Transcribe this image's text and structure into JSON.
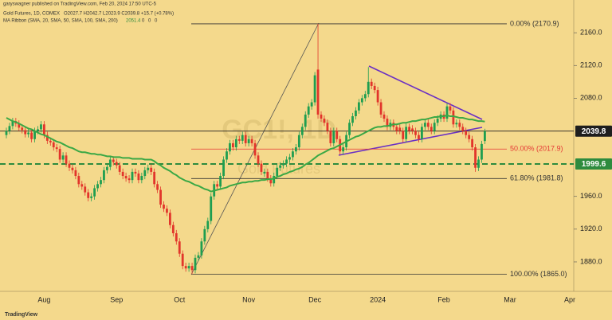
{
  "page": {
    "byline": "garyswagner published on TradingView.com, Feb 20, 2024 17:50 UTC-5",
    "footer": "TradingView"
  },
  "chart_data": {
    "type": "candlestick",
    "legend": {
      "symbol": "Gold Futures, 1D, COMEX",
      "ohlc": "O2027.7 H2042.7 L2023.9 C2039.8 +15.7 (+0.78%)",
      "ma": "MA Ribbon (SMA, 20, SMA, 50, SMA, 100, SMA, 200)",
      "ma_values": [
        2051.4,
        0,
        0,
        0
      ]
    },
    "watermark": {
      "symbol": "GC1!, 1D",
      "name": "Gold Futures"
    },
    "categories": [
      null,
      null,
      null,
      null,
      null,
      null,
      null,
      null,
      null,
      null,
      null,
      null,
      "Aug",
      null,
      null,
      null,
      null,
      null,
      null,
      null,
      null,
      null,
      null,
      null,
      null,
      null,
      null,
      null,
      null,
      null,
      null,
      null,
      null,
      null,
      null,
      "Sep",
      null,
      null,
      null,
      null,
      null,
      null,
      null,
      null,
      null,
      null,
      null,
      null,
      null,
      null,
      null,
      null,
      null,
      null,
      null,
      "Oct",
      null,
      null,
      null,
      null,
      null,
      null,
      null,
      null,
      null,
      null,
      null,
      null,
      null,
      null,
      null,
      null,
      null,
      null,
      null,
      null,
      null,
      "Nov",
      null,
      null,
      null,
      null,
      null,
      null,
      null,
      null,
      null,
      null,
      null,
      null,
      null,
      null,
      null,
      null,
      null,
      null,
      null,
      null,
      "Dec",
      null,
      null,
      null,
      null,
      null,
      null,
      null,
      null,
      null,
      null,
      null,
      null,
      null,
      null,
      null,
      null,
      null,
      null,
      null,
      "2024",
      null,
      null,
      null,
      null,
      null,
      null,
      null,
      null,
      null,
      null,
      null,
      null,
      null,
      null,
      null,
      null,
      null,
      null,
      null,
      null,
      "Feb",
      null,
      null,
      null,
      null,
      null,
      null,
      null,
      null,
      null,
      null,
      null,
      null,
      null,
      null,
      null,
      null,
      null,
      null,
      null,
      null,
      "Mar",
      null,
      null,
      null,
      null,
      null,
      null,
      null,
      null,
      null,
      null,
      null,
      null,
      null,
      null,
      null,
      null,
      null,
      null,
      "Apr",
      null
    ],
    "open": [
      2035,
      2040,
      2046,
      2052,
      2049,
      2044,
      2041,
      2036,
      2038,
      2030,
      2040,
      2042,
      2048,
      2035,
      2028,
      2026,
      2020,
      2018,
      2005,
      2010,
      2000,
      1995,
      1992,
      1985,
      1975,
      1972,
      1965,
      1958,
      1960,
      1970,
      1975,
      1980,
      1992,
      1996,
      2005,
      2002,
      1998,
      1990,
      1985,
      1982,
      1980,
      1990,
      1988,
      1980,
      1985,
      1992,
      1995,
      1990,
      1975,
      1968,
      1950,
      1945,
      1940,
      1925,
      1915,
      1905,
      1890,
      1875,
      1872,
      1875,
      1870,
      1885,
      1888,
      1905,
      1920,
      1930,
      1960,
      1975,
      1972,
      1985,
      2005,
      2015,
      2025,
      2020,
      2030,
      2028,
      2035,
      2025,
      2030,
      2025,
      2010,
      2000,
      1988,
      1990,
      1982,
      1976,
      1985,
      1995,
      1998,
      2000,
      2005,
      2008,
      2015,
      2020,
      2035,
      2045,
      2060,
      2070,
      2075,
      2115,
      2060,
      2055,
      2050,
      2040,
      2025,
      2040,
      2030,
      2015,
      2020,
      2035,
      2050,
      2058,
      2065,
      2075,
      2080,
      2085,
      2100,
      2095,
      2090,
      2075,
      2060,
      2055,
      2045,
      2050,
      2045,
      2044,
      2040,
      2030,
      2045,
      2043,
      2040,
      2035,
      2030,
      2045,
      2050,
      2045,
      2040,
      2050,
      2055,
      2060,
      2055,
      2070,
      2065,
      2048,
      2050,
      2045,
      2040,
      2035,
      2030,
      2020,
      1995,
      2005,
      2027.7,
      null,
      null,
      null,
      null,
      null,
      null,
      null,
      null,
      null,
      null,
      null,
      null,
      null,
      null,
      null,
      null,
      null,
      null,
      null,
      null,
      null,
      null,
      null,
      null,
      null,
      null,
      null,
      null
    ],
    "high": [
      2044,
      2050,
      2056,
      2056,
      2053,
      2048,
      2045,
      2042,
      2042,
      2044,
      2046,
      2052,
      2052,
      2039,
      2032,
      2030,
      2024,
      2022,
      2014,
      2014,
      2004,
      1999,
      1996,
      1989,
      1979,
      1976,
      1969,
      1964,
      1974,
      1979,
      1984,
      1996,
      2000,
      2009,
      2009,
      2006,
      2002,
      1994,
      1989,
      1986,
      1994,
      1994,
      1992,
      1989,
      1996,
      1999,
      1999,
      1994,
      1979,
      1972,
      1954,
      1949,
      1944,
      1929,
      1919,
      1909,
      1894,
      1879,
      1879,
      1879,
      1889,
      1892,
      1909,
      1924,
      1934,
      1964,
      1979,
      1979,
      1989,
      2009,
      2019,
      2029,
      2029,
      2034,
      2034,
      2039,
      2039,
      2034,
      2034,
      2029,
      2014,
      2004,
      1994,
      1994,
      1986,
      1989,
      1999,
      2002,
      2004,
      2009,
      2012,
      2019,
      2024,
      2039,
      2049,
      2064,
      2074,
      2079,
      2112,
      2170.9,
      2064,
      2059,
      2054,
      2044,
      2044,
      2044,
      2034,
      2024,
      2039,
      2054,
      2062,
      2069,
      2079,
      2084,
      2089,
      2118,
      2104,
      2099,
      2094,
      2079,
      2064,
      2059,
      2054,
      2054,
      2049,
      2048,
      2044,
      2049,
      2049,
      2047,
      2044,
      2039,
      2049,
      2054,
      2054,
      2049,
      2054,
      2059,
      2064,
      2064,
      2074,
      2074,
      2069,
      2054,
      2054,
      2049,
      2044,
      2039,
      2034,
      2024,
      2009,
      2028,
      2042.7,
      null,
      null,
      null,
      null,
      null,
      null,
      null,
      null,
      null,
      null,
      null,
      null,
      null,
      null,
      null,
      null,
      null,
      null,
      null,
      null,
      null,
      null,
      null,
      null,
      null,
      null,
      null,
      null
    ],
    "low": [
      2031,
      2036,
      2042,
      2045,
      2040,
      2037,
      2032,
      2032,
      2026,
      2026,
      2036,
      2038,
      2031,
      2024,
      2022,
      2016,
      2014,
      2001,
      2001,
      1996,
      1991,
      1988,
      1981,
      1971,
      1968,
      1961,
      1954,
      1954,
      1956,
      1966,
      1971,
      1976,
      1988,
      1992,
      1998,
      1994,
      1986,
      1981,
      1978,
      1976,
      1976,
      1984,
      1976,
      1976,
      1981,
      1988,
      1986,
      1971,
      1964,
      1946,
      1941,
      1936,
      1921,
      1911,
      1901,
      1886,
      1871,
      1868,
      1868,
      1865,
      1866,
      1881,
      1884,
      1901,
      1916,
      1926,
      1956,
      1968,
      1968,
      1981,
      2001,
      2011,
      2016,
      2016,
      2024,
      2024,
      2021,
      2021,
      2021,
      2006,
      1996,
      1986,
      1984,
      1978,
      1972,
      1972,
      1981,
      1991,
      1994,
      1996,
      2001,
      2004,
      2011,
      2016,
      2031,
      2041,
      2056,
      2066,
      2071,
      2055,
      2051,
      2046,
      2036,
      2021,
      2021,
      2026,
      2011,
      2011,
      2016,
      2031,
      2046,
      2054,
      2061,
      2071,
      2076,
      2081,
      2091,
      2086,
      2071,
      2056,
      2051,
      2041,
      2041,
      2041,
      2036,
      2036,
      2026,
      2026,
      2036,
      2036,
      2031,
      2026,
      2026,
      2041,
      2041,
      2036,
      2036,
      2046,
      2051,
      2051,
      2051,
      2061,
      2044,
      2044,
      2041,
      2036,
      2031,
      2026,
      2016,
      1990,
      1991,
      2001,
      2023.9,
      null,
      null,
      null,
      null,
      null,
      null,
      null,
      null,
      null,
      null,
      null,
      null,
      null,
      null,
      null,
      null,
      null,
      null,
      null,
      null,
      null,
      null,
      null,
      null,
      null,
      null,
      null,
      null
    ],
    "close": [
      2040,
      2046,
      2052,
      2049,
      2044,
      2041,
      2036,
      2038,
      2030,
      2040,
      2042,
      2048,
      2035,
      2028,
      2026,
      2020,
      2018,
      2005,
      2010,
      2000,
      1995,
      1992,
      1985,
      1975,
      1972,
      1965,
      1958,
      1960,
      1970,
      1975,
      1980,
      1992,
      1996,
      2005,
      2002,
      1998,
      1990,
      1985,
      1982,
      1980,
      1990,
      1988,
      1980,
      1985,
      1992,
      1995,
      1990,
      1975,
      1968,
      1950,
      1945,
      1940,
      1925,
      1915,
      1905,
      1890,
      1875,
      1872,
      1875,
      1870,
      1885,
      1888,
      1905,
      1920,
      1930,
      1960,
      1975,
      1972,
      1985,
      2005,
      2015,
      2025,
      2020,
      2030,
      2028,
      2035,
      2025,
      2030,
      2025,
      2010,
      2000,
      1990,
      1990,
      1982,
      1976,
      1985,
      1995,
      1998,
      2000,
      2005,
      2008,
      2015,
      2020,
      2035,
      2045,
      2060,
      2070,
      2075,
      2108,
      2060,
      2055,
      2050,
      2040,
      2025,
      2040,
      2030,
      2015,
      2020,
      2035,
      2050,
      2058,
      2065,
      2075,
      2080,
      2085,
      2100,
      2095,
      2090,
      2075,
      2060,
      2055,
      2045,
      2050,
      2045,
      2040,
      2040,
      2030,
      2045,
      2040,
      2040,
      2035,
      2030,
      2045,
      2050,
      2045,
      2040,
      2050,
      2055,
      2060,
      2055,
      2070,
      2065,
      2048,
      2050,
      2045,
      2040,
      2035,
      2030,
      2020,
      1995,
      2005,
      2024.1,
      2039.8,
      null,
      null,
      null,
      null,
      null,
      null,
      null,
      null,
      null,
      null,
      null,
      null,
      null,
      null,
      null,
      null,
      null,
      null,
      null,
      null,
      null,
      null,
      null,
      null,
      null,
      null,
      null,
      null
    ],
    "up_color": "#1e9e50",
    "down_color": "#e2352b",
    "series": [
      {
        "name": "MA Ribbon",
        "color": "#3aa845",
        "values": [
          2056,
          2054,
          2052,
          2051,
          2049,
          2047,
          2045,
          2043,
          2042,
          2040,
          2038,
          2036,
          2035,
          2033,
          2031,
          2029,
          2027,
          2026,
          2024,
          2022,
          2020,
          2019,
          2017,
          2015,
          2014,
          2014,
          2013,
          2012,
          2012,
          2011,
          2011,
          2010,
          2009,
          2009,
          2008,
          2008,
          2008,
          2007,
          2007,
          2007,
          2006,
          2006,
          2006,
          2006,
          2005,
          2005,
          2005,
          2003,
          2000,
          1998,
          1995,
          1993,
          1991,
          1988,
          1986,
          1983,
          1981,
          1979,
          1978,
          1976,
          1974,
          1973,
          1971,
          1969,
          1968,
          1966,
          1967,
          1968,
          1969,
          1970,
          1971,
          1973,
          1974,
          1975,
          1976,
          1977,
          1977,
          1978,
          1978,
          1979,
          1979,
          1980,
          1980,
          1981,
          1981,
          1982,
          1984,
          1985,
          1987,
          1988,
          1990,
          1991,
          1993,
          1994,
          1996,
          1999,
          2001,
          2004,
          2007,
          2010,
          2012,
          2014,
          2016,
          2018,
          2019,
          2021,
          2023,
          2025,
          2027,
          2029,
          2031,
          2033,
          2034,
          2036,
          2038,
          2040,
          2042,
          2044,
          2045,
          2045,
          2046,
          2046,
          2047,
          2048,
          2048,
          2049,
          2050,
          2050,
          2051,
          2052,
          2052,
          2053,
          2054,
          2054,
          2055,
          2056,
          2057,
          2057,
          2058,
          2058,
          2059,
          2058,
          2058,
          2057,
          2056,
          2056,
          2055,
          2054,
          2054,
          2053,
          2052,
          2052,
          2051.4,
          null,
          null,
          null,
          null,
          null,
          null,
          null,
          null,
          null,
          null,
          null,
          null,
          null,
          null,
          null,
          null,
          null,
          null,
          null,
          null,
          null,
          null,
          null,
          null,
          null,
          null,
          null,
          null
        ]
      }
    ],
    "ylim": [
      1844,
      2200
    ],
    "yticks": [
      {
        "value": 2160,
        "label": "2160.0"
      },
      {
        "value": 2120,
        "label": "2120.0"
      },
      {
        "value": 2080,
        "label": "2080.0"
      },
      {
        "value": 1960,
        "label": "1960.0"
      },
      {
        "value": 1920,
        "label": "1920.0"
      },
      {
        "value": 1880,
        "label": "1880.0"
      }
    ],
    "price_labels": [
      {
        "value": 2039.8,
        "color": "#1e1e1e",
        "line": "solid"
      },
      {
        "value": 1999.6,
        "color": "#2e8b3e",
        "line": "dashed"
      }
    ],
    "fib_levels": [
      {
        "value": 2170.9,
        "label": "0.00% (2170.9)",
        "color": "#333333"
      },
      {
        "value": 2017.9,
        "label": "50.00% (2017.9)",
        "color": "#e53935"
      },
      {
        "value": 1981.8,
        "label": "61.80% (1981.8)",
        "color": "#333333"
      },
      {
        "value": 1865.0,
        "label": "100.00% (1865.0)",
        "color": "#333333"
      }
    ]
  }
}
